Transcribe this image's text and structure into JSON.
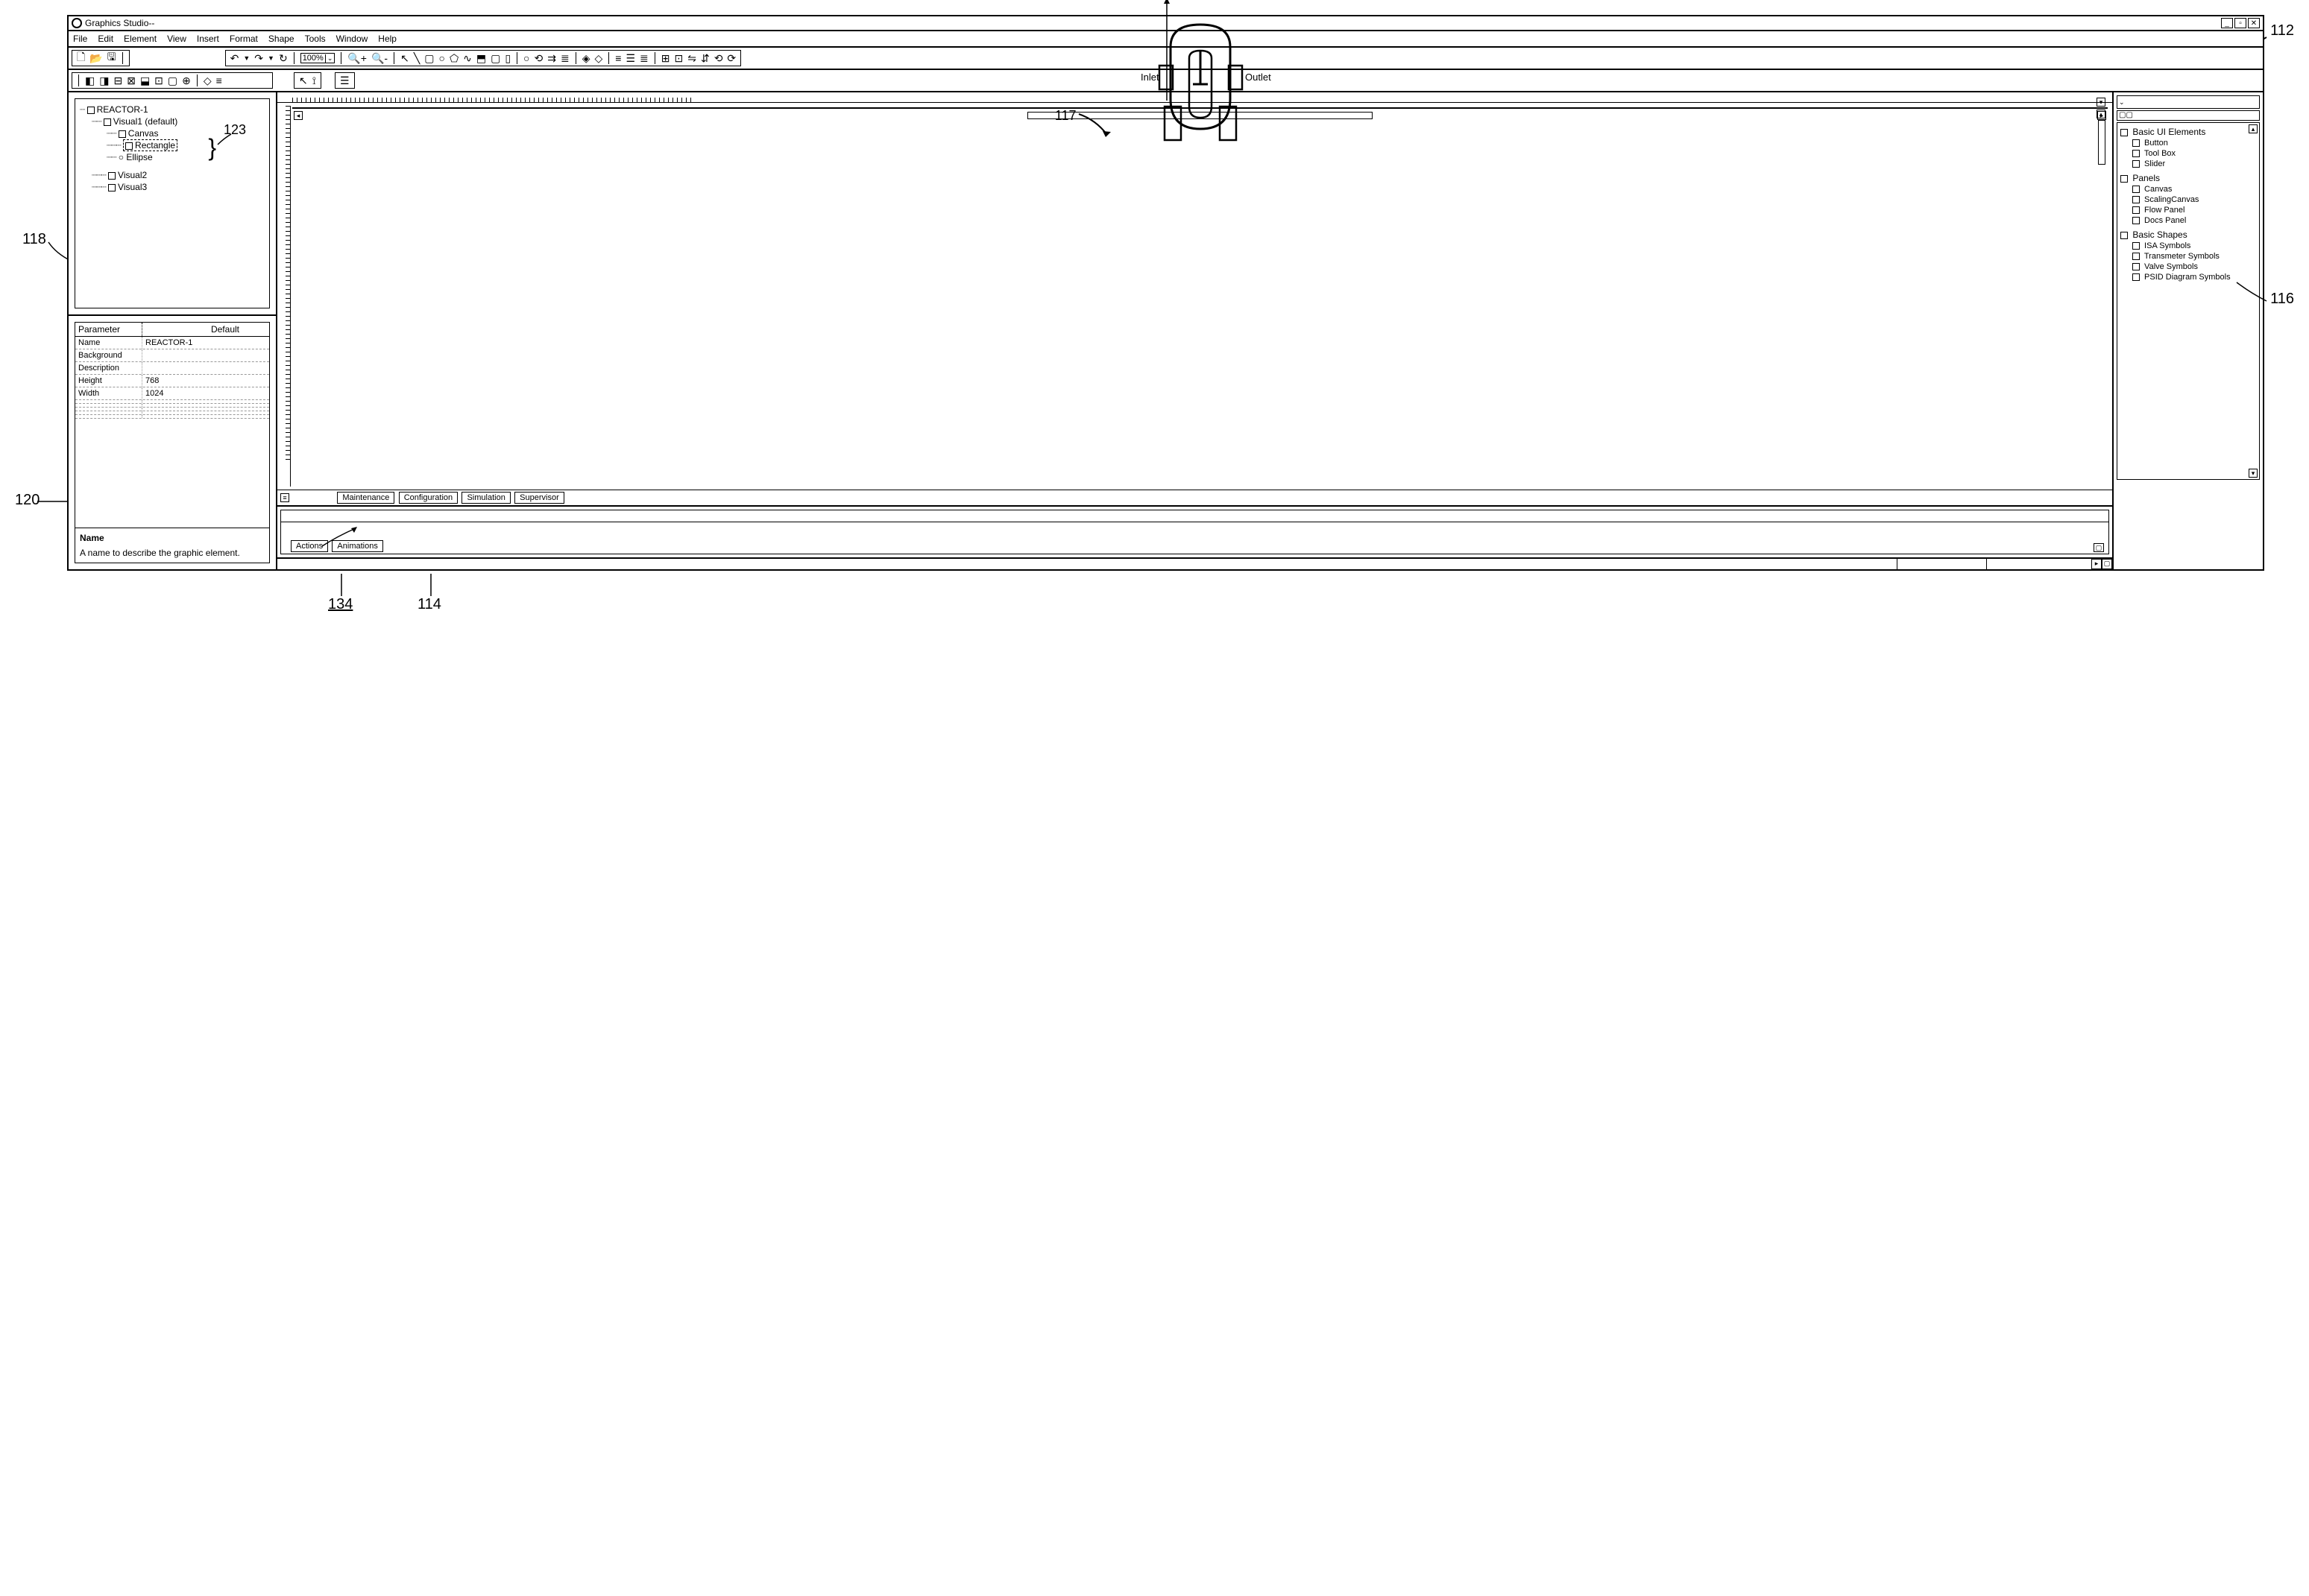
{
  "window": {
    "title": "Graphics Studio--"
  },
  "menu": [
    "File",
    "Edit",
    "Element",
    "View",
    "Insert",
    "Format",
    "Shape",
    "Tools",
    "Window",
    "Help"
  ],
  "toolbar": {
    "zoom": "100%"
  },
  "tree": {
    "root": "REACTOR-1",
    "visual1": "Visual1 (default)",
    "canvas": "Canvas",
    "rectangle": "Rectangle",
    "ellipse": "Ellipse",
    "visual2": "Visual2",
    "visual3": "Visual3"
  },
  "props": {
    "header_param": "Parameter",
    "header_default": "Default",
    "rows": [
      {
        "k": "Name",
        "v": "REACTOR-1"
      },
      {
        "k": "Background",
        "v": ""
      },
      {
        "k": "Description",
        "v": ""
      },
      {
        "k": "Height",
        "v": "768"
      },
      {
        "k": "Width",
        "v": "1024"
      }
    ],
    "desc_title": "Name",
    "desc_text": "A name to describe the graphic element."
  },
  "canvas_labels": {
    "inlet": "Inlet",
    "outlet": "Outlet"
  },
  "view_tabs": [
    "Maintenance",
    "Configuration",
    "Simulation",
    "Supervisor"
  ],
  "bottom_tabs": [
    "Actions",
    "Animations"
  ],
  "palette": {
    "groups": [
      {
        "title": "Basic UI Elements",
        "items": [
          "Button",
          "Tool Box",
          "Slider"
        ]
      },
      {
        "title": "Panels",
        "items": [
          "Canvas",
          "ScalingCanvas",
          "Flow Panel",
          "Docs Panel"
        ]
      },
      {
        "title": "Basic Shapes",
        "items": [
          "ISA Symbols",
          "Transmeter Symbols",
          "Valve Symbols",
          "PSID Diagram Symbols"
        ]
      }
    ]
  },
  "callouts": {
    "c112": "112",
    "c118": "118",
    "c120": "120",
    "c123": "123",
    "c117": "117",
    "c114": "114",
    "c134": "134",
    "c116": "116"
  },
  "styling": {
    "border_color": "#000000",
    "background": "#ffffff",
    "font_size_default": 12,
    "font_size_small": 11
  }
}
